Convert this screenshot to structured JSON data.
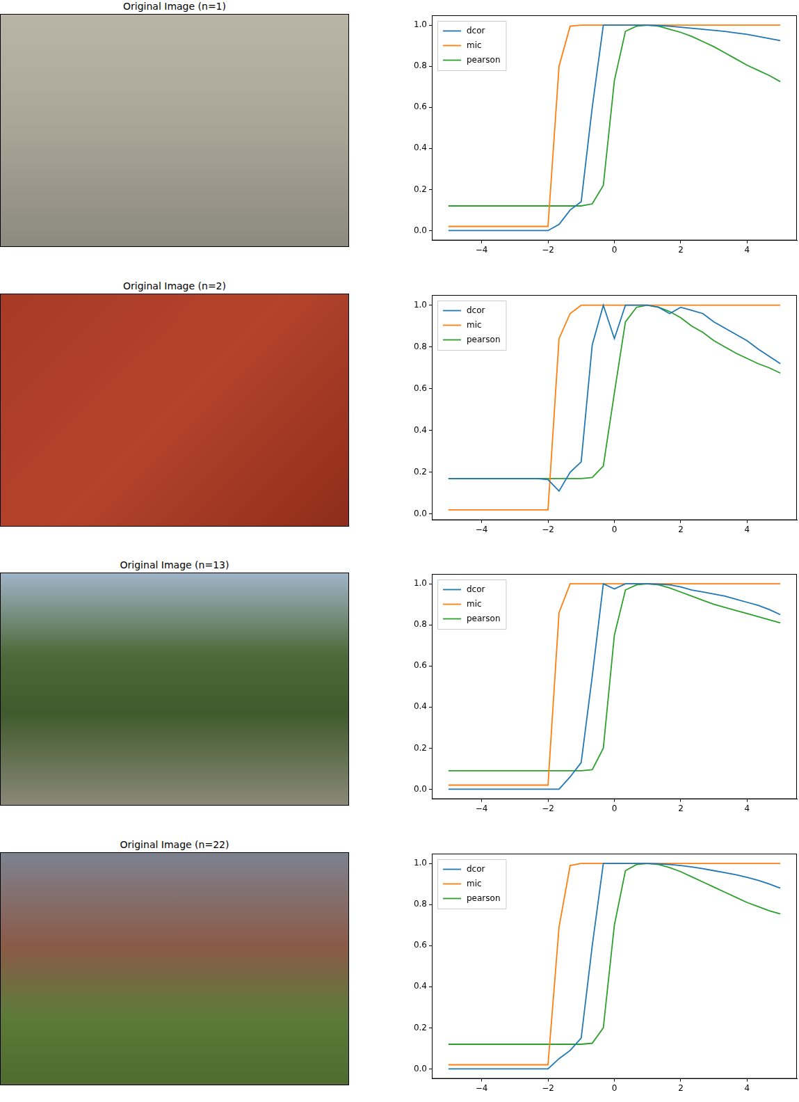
{
  "images": [
    {
      "title": "Original Image (n=1)"
    },
    {
      "title": "Original Image (n=2)"
    },
    {
      "title": "Original Image (n=13)"
    },
    {
      "title": "Original Image (n=22)"
    }
  ],
  "chart_data": [
    {
      "type": "line",
      "legend": "upper left",
      "grid": false,
      "x": [
        -5,
        -4.667,
        -4.333,
        -4,
        -3.667,
        -3.333,
        -3,
        -2.667,
        -2.333,
        -2,
        -1.667,
        -1.333,
        -1,
        -0.667,
        -0.333,
        0,
        0.333,
        0.667,
        1,
        1.333,
        1.667,
        2,
        2.333,
        2.667,
        3,
        3.333,
        3.667,
        4,
        4.333,
        4.667,
        5
      ],
      "xlim": [
        -5.5,
        5.5
      ],
      "xticks": [
        {
          "value": -4,
          "label": "−4"
        },
        {
          "value": -2,
          "label": "−2"
        },
        0,
        2,
        4
      ],
      "ylim": [
        -0.048,
        1.048
      ],
      "yticks": [
        {
          "value": 0,
          "label": "0.0"
        },
        0.2,
        0.4,
        0.6,
        0.8,
        {
          "value": 1,
          "label": "1.0"
        }
      ],
      "series": [
        {
          "name": "dcor",
          "color": "#1f77b4",
          "values": [
            0,
            0,
            0,
            0,
            0,
            0,
            0,
            0,
            0,
            0,
            0.03,
            0.1,
            0.14,
            0.6,
            1,
            1,
            1,
            1,
            1,
            0.998,
            0.995,
            0.99,
            0.985,
            0.98,
            0.975,
            0.97,
            0.962,
            0.955,
            0.945,
            0.935,
            0.925
          ]
        },
        {
          "name": "mic",
          "color": "#ff7f0e",
          "values": [
            0.02,
            0.02,
            0.02,
            0.02,
            0.02,
            0.02,
            0.02,
            0.02,
            0.02,
            0.02,
            0.8,
            0.995,
            1,
            1,
            1,
            1,
            1,
            1,
            1,
            1,
            1,
            1,
            1,
            1,
            1,
            1,
            1,
            1,
            1,
            1,
            1
          ]
        },
        {
          "name": "pearson",
          "color": "#2ca02c",
          "values": [
            0.12,
            0.12,
            0.12,
            0.12,
            0.12,
            0.12,
            0.12,
            0.12,
            0.12,
            0.12,
            0.12,
            0.12,
            0.12,
            0.13,
            0.22,
            0.73,
            0.97,
            0.995,
            1,
            0.995,
            0.98,
            0.965,
            0.945,
            0.92,
            0.895,
            0.865,
            0.835,
            0.805,
            0.78,
            0.755,
            0.725
          ]
        }
      ]
    },
    {
      "type": "line",
      "legend": "upper left",
      "grid": false,
      "x": [
        -5,
        -4.667,
        -4.333,
        -4,
        -3.667,
        -3.333,
        -3,
        -2.667,
        -2.333,
        -2,
        -1.667,
        -1.333,
        -1,
        -0.667,
        -0.333,
        0,
        0.333,
        0.667,
        1,
        1.333,
        1.667,
        2,
        2.333,
        2.667,
        3,
        3.333,
        3.667,
        4,
        4.333,
        4.667,
        5
      ],
      "xlim": [
        -5.5,
        5.5
      ],
      "xticks": [
        {
          "value": -4,
          "label": "−4"
        },
        {
          "value": -2,
          "label": "−2"
        },
        0,
        2,
        4
      ],
      "ylim": [
        -0.029,
        1.049
      ],
      "yticks": [
        {
          "value": 0,
          "label": "0.0"
        },
        0.2,
        0.4,
        0.6,
        0.8,
        {
          "value": 1,
          "label": "1.0"
        }
      ],
      "series": [
        {
          "name": "dcor",
          "color": "#1f77b4",
          "values": [
            0.17,
            0.17,
            0.17,
            0.17,
            0.17,
            0.17,
            0.17,
            0.17,
            0.17,
            0.165,
            0.11,
            0.2,
            0.25,
            0.81,
            1,
            0.84,
            1,
            1,
            1,
            0.99,
            0.96,
            0.99,
            0.975,
            0.96,
            0.92,
            0.89,
            0.86,
            0.83,
            0.79,
            0.755,
            0.72
          ]
        },
        {
          "name": "mic",
          "color": "#ff7f0e",
          "values": [
            0.02,
            0.02,
            0.02,
            0.02,
            0.02,
            0.02,
            0.02,
            0.02,
            0.02,
            0.02,
            0.84,
            0.96,
            1,
            1,
            1,
            1,
            1,
            1,
            1,
            1,
            1,
            1,
            1,
            1,
            1,
            1,
            1,
            1,
            1,
            1,
            1
          ]
        },
        {
          "name": "pearson",
          "color": "#2ca02c",
          "values": [
            0.17,
            0.17,
            0.17,
            0.17,
            0.17,
            0.17,
            0.17,
            0.17,
            0.17,
            0.17,
            0.17,
            0.17,
            0.17,
            0.175,
            0.23,
            0.58,
            0.92,
            0.99,
            1,
            0.99,
            0.97,
            0.94,
            0.9,
            0.87,
            0.83,
            0.8,
            0.77,
            0.745,
            0.72,
            0.7,
            0.675
          ]
        }
      ]
    },
    {
      "type": "line",
      "legend": "upper left",
      "grid": false,
      "x": [
        -5,
        -4.667,
        -4.333,
        -4,
        -3.667,
        -3.333,
        -3,
        -2.667,
        -2.333,
        -2,
        -1.667,
        -1.333,
        -1,
        -0.667,
        -0.333,
        0,
        0.333,
        0.667,
        1,
        1.333,
        1.667,
        2,
        2.333,
        2.667,
        3,
        3.333,
        3.667,
        4,
        4.333,
        4.667,
        5
      ],
      "xlim": [
        -5.5,
        5.5
      ],
      "xticks": [
        {
          "value": -4,
          "label": "−4"
        },
        {
          "value": -2,
          "label": "−2"
        },
        0,
        2,
        4
      ],
      "ylim": [
        -0.048,
        1.048
      ],
      "yticks": [
        {
          "value": 0,
          "label": "0.0"
        },
        0.2,
        0.4,
        0.6,
        0.8,
        {
          "value": 1,
          "label": "1.0"
        }
      ],
      "series": [
        {
          "name": "dcor",
          "color": "#1f77b4",
          "values": [
            0,
            0,
            0,
            0,
            0,
            0,
            0,
            0,
            0,
            0,
            0,
            0.06,
            0.13,
            0.55,
            1,
            0.975,
            1,
            1,
            1,
            0.998,
            0.995,
            0.985,
            0.97,
            0.96,
            0.95,
            0.94,
            0.925,
            0.91,
            0.895,
            0.875,
            0.85
          ]
        },
        {
          "name": "mic",
          "color": "#ff7f0e",
          "values": [
            0.02,
            0.02,
            0.02,
            0.02,
            0.02,
            0.02,
            0.02,
            0.02,
            0.02,
            0.02,
            0.86,
            1,
            1,
            1,
            1,
            1,
            1,
            1,
            1,
            1,
            1,
            1,
            1,
            1,
            1,
            1,
            1,
            1,
            1,
            1,
            1
          ]
        },
        {
          "name": "pearson",
          "color": "#2ca02c",
          "values": [
            0.09,
            0.09,
            0.09,
            0.09,
            0.09,
            0.09,
            0.09,
            0.09,
            0.09,
            0.09,
            0.09,
            0.09,
            0.09,
            0.095,
            0.2,
            0.75,
            0.97,
            0.995,
            1,
            0.995,
            0.98,
            0.96,
            0.94,
            0.92,
            0.9,
            0.885,
            0.87,
            0.855,
            0.84,
            0.825,
            0.81
          ]
        }
      ]
    },
    {
      "type": "line",
      "legend": "upper left",
      "grid": false,
      "x": [
        -5,
        -4.667,
        -4.333,
        -4,
        -3.667,
        -3.333,
        -3,
        -2.667,
        -2.333,
        -2,
        -1.667,
        -1.333,
        -1,
        -0.667,
        -0.333,
        0,
        0.333,
        0.667,
        1,
        1.333,
        1.667,
        2,
        2.333,
        2.667,
        3,
        3.333,
        3.667,
        4,
        4.333,
        4.667,
        5
      ],
      "xlim": [
        -5.5,
        5.5
      ],
      "xticks": [
        {
          "value": -4,
          "label": "−4"
        },
        {
          "value": -2,
          "label": "−2"
        },
        0,
        2,
        4
      ],
      "ylim": [
        -0.048,
        1.048
      ],
      "yticks": [
        {
          "value": 0,
          "label": "0.0"
        },
        0.2,
        0.4,
        0.6,
        0.8,
        {
          "value": 1,
          "label": "1.0"
        }
      ],
      "series": [
        {
          "name": "dcor",
          "color": "#1f77b4",
          "values": [
            0,
            0,
            0,
            0,
            0,
            0,
            0,
            0,
            0,
            0,
            0.05,
            0.09,
            0.15,
            0.6,
            1,
            1,
            1,
            1,
            1,
            0.998,
            0.995,
            0.99,
            0.983,
            0.975,
            0.965,
            0.955,
            0.945,
            0.932,
            0.918,
            0.9,
            0.88
          ]
        },
        {
          "name": "mic",
          "color": "#ff7f0e",
          "values": [
            0.02,
            0.02,
            0.02,
            0.02,
            0.02,
            0.02,
            0.02,
            0.02,
            0.02,
            0.02,
            0.69,
            0.99,
            1,
            1,
            1,
            1,
            1,
            1,
            1,
            1,
            1,
            1,
            1,
            1,
            1,
            1,
            1,
            1,
            1,
            1,
            1
          ]
        },
        {
          "name": "pearson",
          "color": "#2ca02c",
          "values": [
            0.12,
            0.12,
            0.12,
            0.12,
            0.12,
            0.12,
            0.12,
            0.12,
            0.12,
            0.12,
            0.12,
            0.12,
            0.12,
            0.125,
            0.2,
            0.7,
            0.965,
            0.995,
            1,
            0.995,
            0.98,
            0.96,
            0.935,
            0.91,
            0.885,
            0.86,
            0.835,
            0.81,
            0.79,
            0.77,
            0.755
          ]
        }
      ]
    }
  ]
}
